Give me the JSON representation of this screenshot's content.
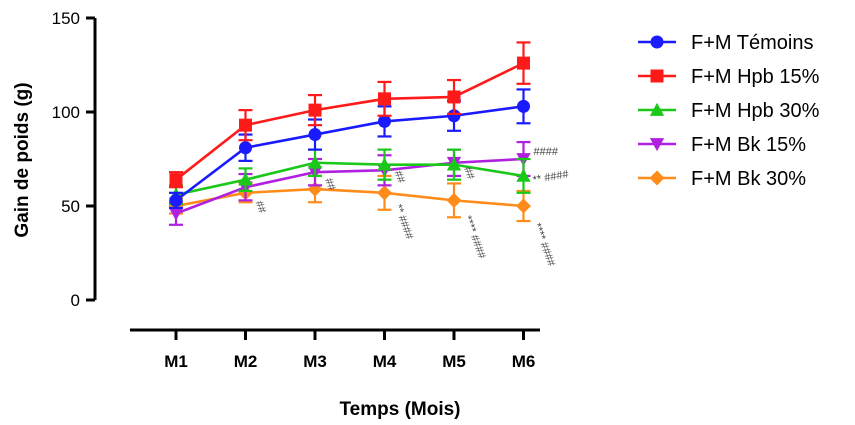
{
  "chart_data": {
    "type": "line",
    "xlabel": "Temps (Mois)",
    "ylabel": "Gain de poids (g)",
    "categories": [
      "M1",
      "M2",
      "M3",
      "M4",
      "M5",
      "M6"
    ],
    "ylim": [
      0,
      150
    ],
    "yticks": [
      "0",
      "50",
      "100",
      "150"
    ],
    "grid": false,
    "legend_position": "right",
    "series": [
      {
        "name": "F+M Témoins",
        "color": "#1a1aff",
        "marker": "circle",
        "values": [
          53,
          81,
          88,
          95,
          98,
          103
        ],
        "errors": [
          4,
          7,
          8,
          8,
          8,
          9
        ]
      },
      {
        "name": "F+M Hpb 15%",
        "color": "#ff1a1a",
        "marker": "square",
        "values": [
          64,
          93,
          101,
          107,
          108,
          126
        ],
        "errors": [
          4,
          8,
          8,
          9,
          9,
          11
        ]
      },
      {
        "name": "F+M Hpb 30%",
        "color": "#1ac81a",
        "marker": "triangle-up",
        "values": [
          56,
          64,
          73,
          72,
          72,
          66
        ],
        "errors": [
          5,
          6,
          7,
          8,
          8,
          9
        ]
      },
      {
        "name": "F+M Bk 15%",
        "color": "#b020e0",
        "marker": "triangle-down",
        "values": [
          46,
          60,
          68,
          69,
          73,
          75
        ],
        "errors": [
          6,
          7,
          7,
          8,
          7,
          9
        ]
      },
      {
        "name": "F+M Bk 30%",
        "color": "#ff8c1a",
        "marker": "diamond",
        "values": [
          50,
          57,
          59,
          57,
          53,
          50
        ],
        "errors": [
          4,
          5,
          7,
          9,
          9,
          8
        ]
      }
    ],
    "annotations": [
      {
        "text": "##",
        "category": "M2",
        "value": 52,
        "rotation": 70
      },
      {
        "text": "##",
        "category": "M3",
        "value": 64,
        "rotation": 70
      },
      {
        "text": "##",
        "category": "M4",
        "value": 68,
        "rotation": 70
      },
      {
        "text": "** ####",
        "category": "M4",
        "value": 50,
        "rotation": 70
      },
      {
        "text": "##",
        "category": "M5",
        "value": 70,
        "rotation": 70
      },
      {
        "text": "**** ####",
        "category": "M5",
        "value": 44,
        "rotation": 70
      },
      {
        "text": "####",
        "category": "M6",
        "value": 77,
        "rotation": 0
      },
      {
        "text": "** ####",
        "category": "M6",
        "value": 62,
        "rotation": -10
      },
      {
        "text": "**** ####",
        "category": "M6",
        "value": 40,
        "rotation": 70
      }
    ]
  }
}
